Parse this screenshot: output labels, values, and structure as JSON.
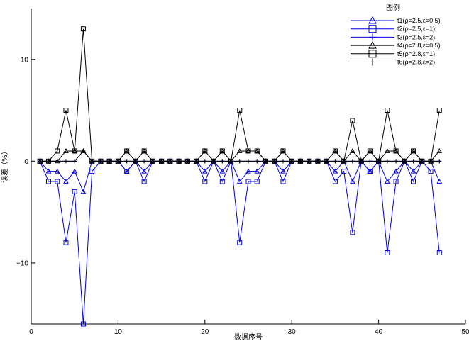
{
  "chart_data": {
    "type": "line",
    "title": "",
    "xlabel": "数据序号",
    "ylabel": "误差（%）",
    "xlim": [
      0,
      50
    ],
    "ylim": [
      -16,
      15
    ],
    "xticks": [
      0,
      10,
      20,
      30,
      40,
      50
    ],
    "xtick_labels": [
      "0",
      "10",
      "20",
      "30",
      "40",
      "50"
    ],
    "yticks": [
      -10,
      0,
      10
    ],
    "ytick_labels": [
      "−10",
      "0",
      "10"
    ],
    "grid": false,
    "legend": {
      "title": "图例",
      "placement": "top-right"
    },
    "x": [
      1,
      2,
      3,
      4,
      5,
      6,
      7,
      8,
      9,
      10,
      11,
      12,
      13,
      14,
      15,
      16,
      17,
      18,
      19,
      20,
      21,
      22,
      23,
      24,
      25,
      26,
      27,
      28,
      29,
      30,
      31,
      32,
      33,
      34,
      35,
      36,
      37,
      38,
      39,
      40,
      41,
      42,
      43,
      44,
      45,
      46,
      47
    ],
    "series": [
      {
        "name": "t1(ρ=2.5,ε=0.5)",
        "color": "#0000dd",
        "marker": "triangle",
        "values": [
          0,
          -1,
          -1,
          -2,
          -1,
          -3,
          0,
          0,
          0,
          0,
          -1,
          0,
          -1,
          0,
          0,
          0,
          0,
          0,
          0,
          -1,
          0,
          -1,
          0,
          -2,
          -1,
          -1,
          0,
          0,
          -1,
          0,
          0,
          0,
          0,
          0,
          -1,
          0,
          -2,
          0,
          -1,
          0,
          -2,
          -1,
          0,
          -1,
          0,
          0,
          -2
        ]
      },
      {
        "name": "t2(ρ=2.5,ε=1)",
        "color": "#0000dd",
        "marker": "square",
        "values": [
          0,
          -2,
          -2,
          -8,
          -3,
          -16,
          -1,
          0,
          0,
          0,
          -1,
          0,
          -2,
          0,
          0,
          0,
          0,
          0,
          0,
          -2,
          0,
          -2,
          0,
          -8,
          -2,
          -2,
          0,
          0,
          -2,
          0,
          0,
          0,
          0,
          0,
          -2,
          -1,
          -7,
          0,
          -1,
          0,
          -9,
          -2,
          0,
          -2,
          0,
          -1,
          -9
        ]
      },
      {
        "name": "t3(ρ=2.5,ε=2)",
        "color": "#0000dd",
        "marker": "plus",
        "values": [
          0,
          0,
          0,
          0,
          0,
          1,
          0,
          0,
          0,
          0,
          0,
          0,
          0,
          0,
          0,
          0,
          0,
          0,
          0,
          0,
          0,
          0,
          0,
          0,
          0,
          0,
          0,
          0,
          0,
          0,
          0,
          0,
          0,
          0,
          0,
          0,
          0,
          0,
          0,
          0,
          0,
          0,
          0,
          0,
          0,
          0,
          0
        ]
      },
      {
        "name": "t4(ρ=2.8,ε=0.5)",
        "color": "#000000",
        "marker": "triangle",
        "values": [
          0,
          0,
          0,
          1,
          1,
          1,
          0,
          0,
          0,
          0,
          1,
          0,
          1,
          0,
          0,
          0,
          0,
          0,
          0,
          1,
          0,
          1,
          0,
          1,
          1,
          1,
          0,
          0,
          1,
          0,
          0,
          0,
          0,
          0,
          1,
          0,
          1,
          0,
          1,
          0,
          1,
          1,
          0,
          1,
          0,
          0,
          1
        ]
      },
      {
        "name": "t5(ρ=2.8,ε=1)",
        "color": "#000000",
        "marker": "square",
        "values": [
          0,
          0,
          1,
          5,
          1,
          13,
          0,
          0,
          0,
          0,
          1,
          0,
          1,
          0,
          0,
          0,
          0,
          0,
          0,
          1,
          0,
          1,
          0,
          5,
          1,
          1,
          0,
          0,
          1,
          0,
          0,
          0,
          0,
          0,
          1,
          0,
          4,
          0,
          1,
          0,
          5,
          1,
          0,
          1,
          0,
          0,
          5
        ]
      },
      {
        "name": "t6(ρ=2.8,ε=2)",
        "color": "#000000",
        "marker": "plus",
        "values": [
          0,
          0,
          0,
          0,
          0,
          1,
          0,
          0,
          0,
          0,
          0,
          0,
          0,
          0,
          0,
          0,
          0,
          0,
          0,
          0,
          0,
          0,
          0,
          0,
          0,
          0,
          0,
          0,
          0,
          0,
          0,
          0,
          0,
          0,
          0,
          0,
          0,
          0,
          0,
          0,
          0,
          0,
          0,
          0,
          0,
          0,
          0
        ]
      }
    ]
  }
}
